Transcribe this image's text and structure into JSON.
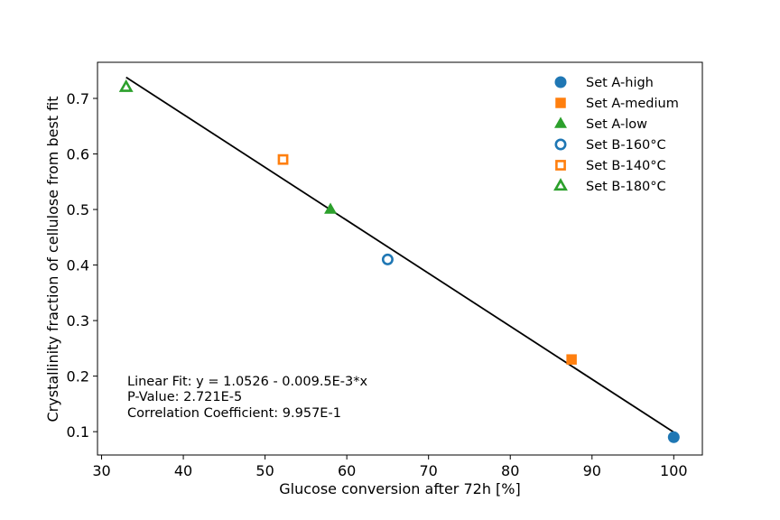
{
  "chart_data": {
    "type": "scatter",
    "title": "",
    "xlabel": "Glucose conversion after 72h [%]",
    "ylabel": "Crystallinity fraction of cellulose from best fit",
    "xlim": [
      29.5,
      103.5
    ],
    "ylim": [
      0.058,
      0.765
    ],
    "xticks": [
      30,
      40,
      50,
      60,
      70,
      80,
      90,
      100
    ],
    "yticks": [
      0.1,
      0.2,
      0.3,
      0.4,
      0.5,
      0.6,
      0.7
    ],
    "grid": false,
    "legend_position": "top-right",
    "series": [
      {
        "name": "Set A-high",
        "marker": "circle",
        "filled": true,
        "color": "#1f77b4",
        "points": [
          {
            "x": 100,
            "y": 0.09
          }
        ]
      },
      {
        "name": "Set A-medium",
        "marker": "square",
        "filled": true,
        "color": "#ff7f0e",
        "points": [
          {
            "x": 87.5,
            "y": 0.23
          }
        ]
      },
      {
        "name": "Set A-low",
        "marker": "triangle",
        "filled": true,
        "color": "#2ca02c",
        "points": [
          {
            "x": 58,
            "y": 0.5
          }
        ]
      },
      {
        "name": "Set B-160°C",
        "marker": "circle",
        "filled": false,
        "color": "#1f77b4",
        "points": [
          {
            "x": 65,
            "y": 0.41
          }
        ]
      },
      {
        "name": "Set B-140°C",
        "marker": "square",
        "filled": false,
        "color": "#ff7f0e",
        "points": [
          {
            "x": 52.2,
            "y": 0.59
          }
        ]
      },
      {
        "name": "Set B-180°C",
        "marker": "triangle",
        "filled": false,
        "color": "#2ca02c",
        "points": [
          {
            "x": 33,
            "y": 0.72
          }
        ]
      }
    ],
    "fit_line": {
      "color": "#000000",
      "points": [
        {
          "x": 33,
          "y": 0.738
        },
        {
          "x": 100,
          "y": 0.099
        }
      ]
    },
    "annotations": [
      "Linear Fit: y = 1.0526 - 0.009.5E-3*x",
      "P-Value: 2.721E-5",
      "Correlation Coefficient: 9.957E-1"
    ]
  }
}
